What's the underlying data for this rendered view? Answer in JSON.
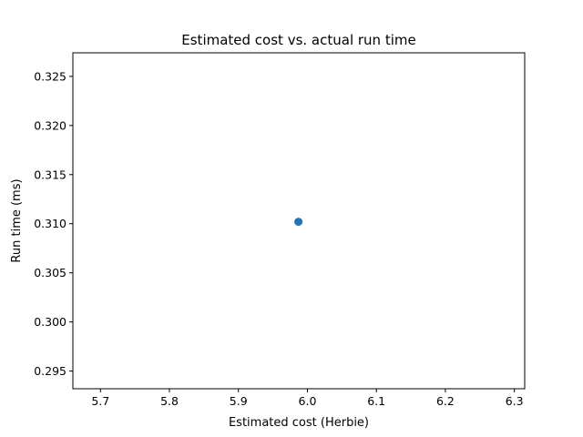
{
  "chart_data": {
    "type": "scatter",
    "title": "Estimated cost vs. actual run time",
    "xlabel": "Estimated cost (Herbie)",
    "ylabel": "Run time (ms)",
    "xlim": [
      5.66,
      6.315
    ],
    "ylim": [
      0.2932,
      0.3274
    ],
    "xticks": [
      "5.7",
      "5.8",
      "5.9",
      "6.0",
      "6.1",
      "6.2",
      "6.3"
    ],
    "yticks": [
      "0.295",
      "0.300",
      "0.305",
      "0.310",
      "0.315",
      "0.320",
      "0.325"
    ],
    "grid": false,
    "series": [
      {
        "color": "#1f77b4",
        "points": [
          {
            "x": 5.987,
            "y": 0.3102
          }
        ]
      }
    ]
  }
}
